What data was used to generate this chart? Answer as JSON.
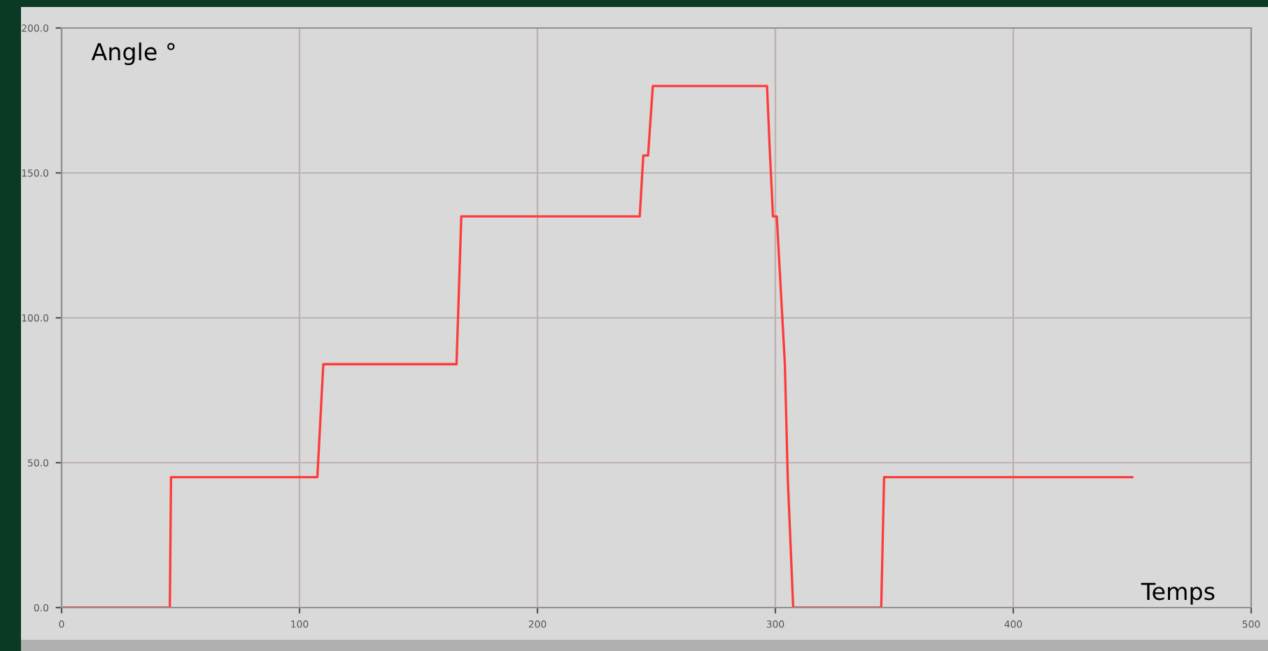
{
  "chart_data": {
    "type": "line",
    "xlabel": "Temps",
    "ylabel": "Angle °",
    "xlim": [
      0,
      500
    ],
    "ylim": [
      0,
      200
    ],
    "xticks": [
      {
        "value": 0,
        "label": "0"
      },
      {
        "value": 100,
        "label": "100"
      },
      {
        "value": 200,
        "label": "200"
      },
      {
        "value": 300,
        "label": "300"
      },
      {
        "value": 400,
        "label": "400"
      },
      {
        "value": 500,
        "label": "500"
      }
    ],
    "yticks": [
      {
        "value": 0,
        "label": "0.0"
      },
      {
        "value": 50,
        "label": "50.0"
      },
      {
        "value": 100,
        "label": "100.0"
      },
      {
        "value": 150,
        "label": "150.0"
      },
      {
        "value": 200,
        "label": "200.0"
      }
    ],
    "grid": true,
    "marker": "none",
    "line_style": "solid",
    "series": [
      {
        "color": "#ff3a3a",
        "x": [
          0,
          45.5,
          46,
          107.5,
          110,
          166,
          168,
          243,
          244.5,
          246.5,
          248.5,
          296.5,
          297.7,
          299,
          300.6,
          304,
          305.2,
          307.5,
          344.5,
          345.7,
          450
        ],
        "values": [
          0,
          0,
          45,
          45,
          84,
          84,
          135,
          135,
          156,
          156,
          180,
          180,
          157,
          135,
          135,
          84,
          45,
          0,
          0,
          45,
          45
        ]
      }
    ]
  }
}
